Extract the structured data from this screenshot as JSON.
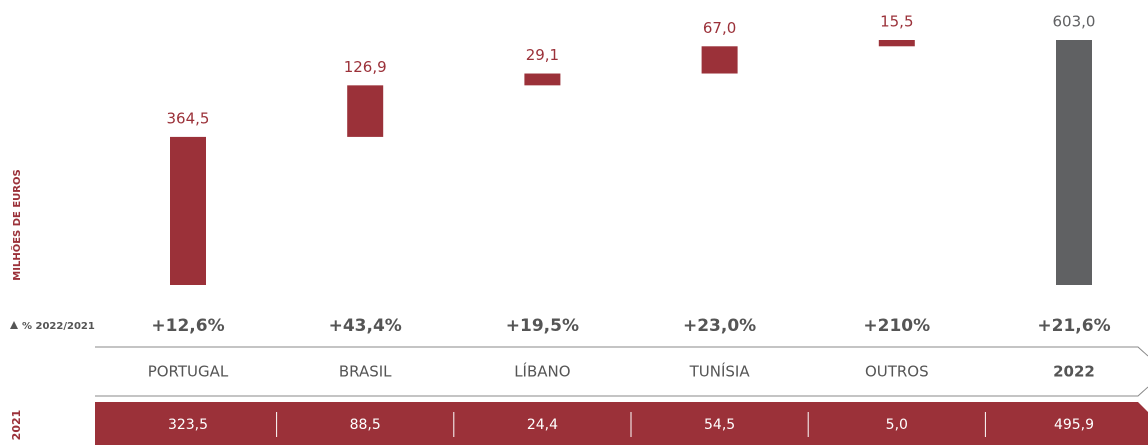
{
  "chart_data": {
    "type": "waterfall",
    "y_label": "MILHÕES DE EUROS",
    "categories": [
      "PORTUGAL",
      "BRASIL",
      "LÍBANO",
      "TUNÍSIA",
      "OUTROS",
      "2022"
    ],
    "values": [
      364.5,
      126.9,
      29.1,
      67.0,
      15.5,
      603.0
    ],
    "value_labels": [
      "364,5",
      "126,9",
      "29,1",
      "67,0",
      "15,5",
      "603,0"
    ],
    "totals": [
      false,
      false,
      false,
      false,
      false,
      true
    ],
    "color": "#9b3139",
    "total_color": "#606163",
    "change": {
      "label": "% 2022/2021",
      "labels": [
        "+12,6%",
        "+43,4%",
        "+19,5%",
        "+23,0%",
        "+210%",
        "+21,6%"
      ]
    },
    "prior_year": {
      "label": "2021",
      "values": [
        323.5,
        88.5,
        24.4,
        54.5,
        5.0,
        495.9
      ],
      "value_labels": [
        "323,5",
        "88,5",
        "24,4",
        "54,5",
        "5,0",
        "495,9"
      ]
    }
  }
}
